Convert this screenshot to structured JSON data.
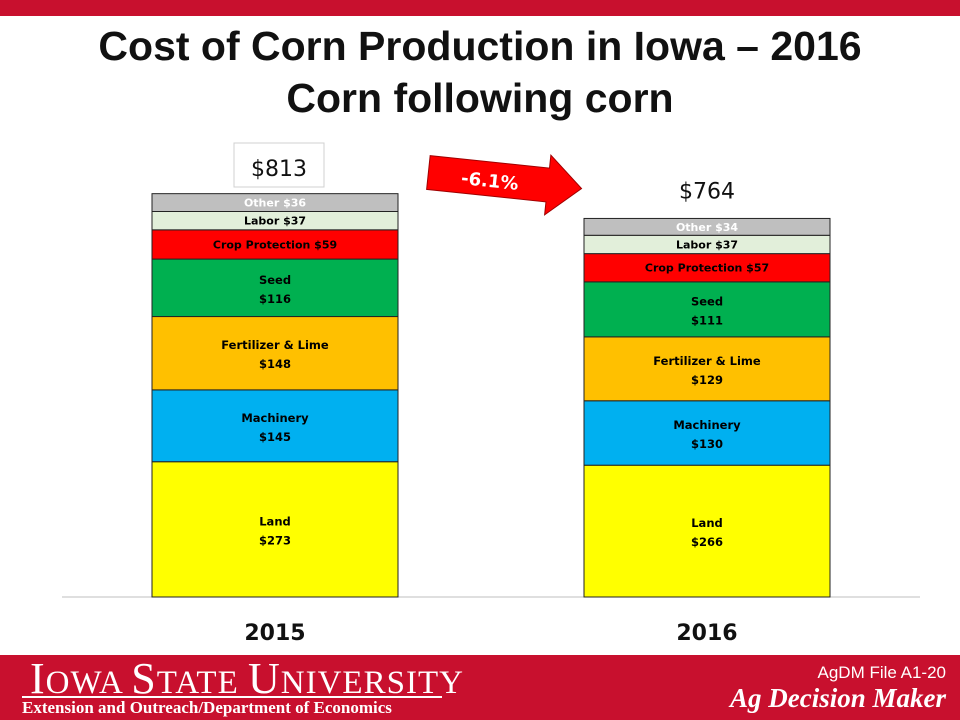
{
  "slide": {
    "title_line1": "Cost of Corn Production in Iowa – 2016",
    "title_line2": "Corn following corn"
  },
  "chart_data": {
    "type": "bar",
    "stacked": true,
    "title": "",
    "xlabel": "",
    "ylabel": "",
    "ylim": [
      0,
      900
    ],
    "categories": [
      "2015",
      "2016"
    ],
    "totals": [
      {
        "value": 813,
        "label": "$813"
      },
      {
        "value": 764,
        "label": "$764"
      }
    ],
    "series": [
      {
        "name": "Land",
        "color": "#ffff00",
        "values": [
          273,
          266
        ],
        "labels": [
          "$273",
          "$266"
        ],
        "layout": "two-line"
      },
      {
        "name": "Machinery",
        "color": "#00b0f0",
        "values": [
          145,
          130
        ],
        "labels": [
          "$145",
          "$130"
        ],
        "layout": "two-line"
      },
      {
        "name": "Fertilizer & Lime",
        "color": "#ffc000",
        "values": [
          148,
          129
        ],
        "labels": [
          "$148",
          "$129"
        ],
        "layout": "two-line"
      },
      {
        "name": "Seed",
        "color": "#00b050",
        "values": [
          116,
          111
        ],
        "labels": [
          "$116",
          "$111"
        ],
        "layout": "two-line"
      },
      {
        "name": "Crop Protection",
        "color": "#ff0000",
        "values": [
          59,
          57
        ],
        "labels": [
          "$59",
          "$57"
        ],
        "layout": "one-line"
      },
      {
        "name": "Labor",
        "color": "#e2efda",
        "values": [
          37,
          37
        ],
        "labels": [
          "$37",
          "$37"
        ],
        "layout": "one-line"
      },
      {
        "name": "Other",
        "color": "#bfbfbf",
        "values": [
          36,
          34
        ],
        "labels": [
          "$36",
          "$34"
        ],
        "layout": "one-line"
      }
    ],
    "annotation": {
      "label": "-6.1%",
      "shape": "arrow-right",
      "color": "#ff0000"
    },
    "grid": false,
    "legend": "none"
  },
  "footer": {
    "university_first_I": "I",
    "university_owa": "OWA ",
    "university_S": "S",
    "university_tate": "TATE ",
    "university_U": "U",
    "university_niversity": "NIVERSITY",
    "extension": "Extension and Outreach/Department  of Economics",
    "file": "AgDM File A1-20",
    "brand": "Ag Decision Maker"
  },
  "colors": {
    "accent": "#c8102e"
  }
}
